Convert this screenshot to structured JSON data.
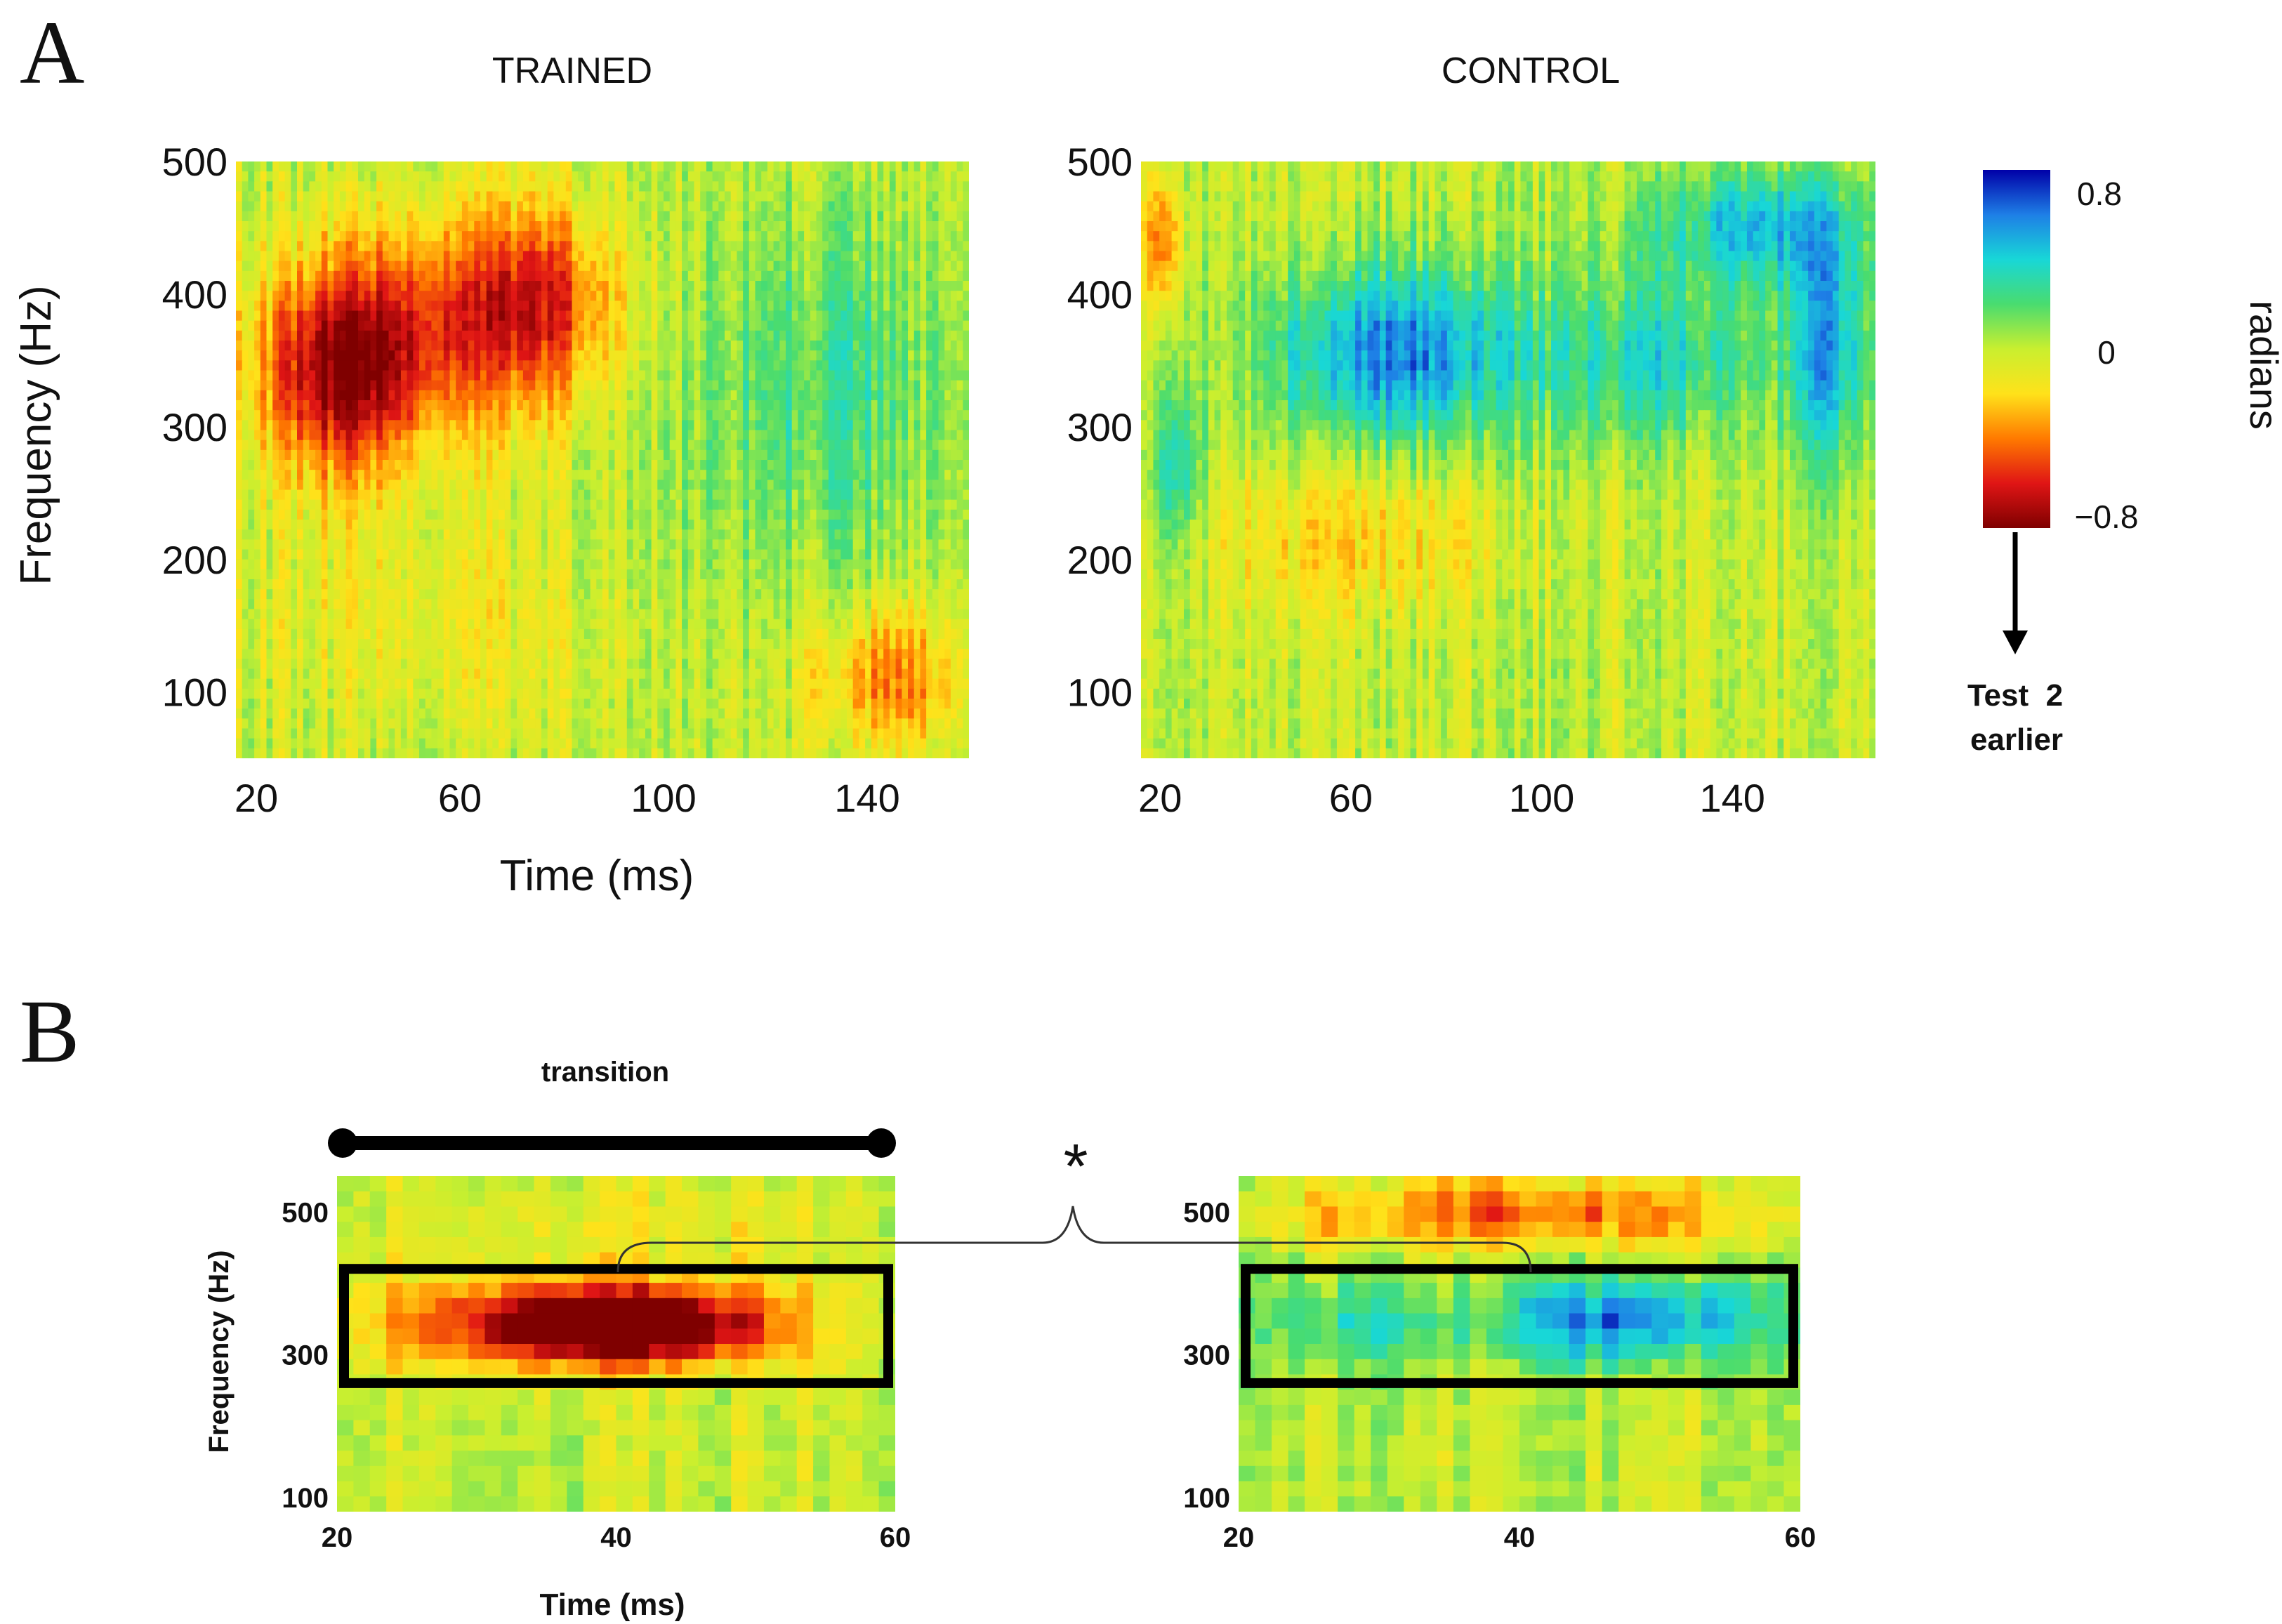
{
  "figure": {
    "panel_a_letter": "A",
    "panel_b_letter": "B",
    "significance_marker": "*"
  },
  "colorbar": {
    "max_label": "0.8",
    "mid_label": "0",
    "min_label": "−0.8",
    "unit_label": "radians",
    "arrow_label_line1": "Test  2",
    "arrow_label_line2": "earlier",
    "colors": [
      "#7f0000",
      "#e01515",
      "#ff7a00",
      "#ffe21a",
      "#c9ef2f",
      "#49dc6f",
      "#18d7d7",
      "#1e7fe6",
      "#0000a8"
    ]
  },
  "chart_data": [
    {
      "type": "heatmap",
      "title": "TRAINED",
      "xlabel": "Time (ms)",
      "ylabel": "Frequency (Hz)",
      "xlim": [
        16,
        160
      ],
      "ylim": [
        50,
        500
      ],
      "x_ticks": [
        20,
        60,
        100,
        140
      ],
      "y_ticks": [
        100,
        200,
        300,
        400,
        500
      ],
      "x_tick_labels": [
        "20",
        "60",
        "100",
        "140"
      ],
      "y_tick_labels": [
        "100",
        "200",
        "300",
        "400",
        "500"
      ],
      "value_unit": "radians",
      "value_range": [
        -0.8,
        0.8
      ],
      "features": [
        {
          "t": [
            18,
            55
          ],
          "f": [
            250,
            430
          ],
          "value": -0.7
        },
        {
          "t": [
            30,
            90
          ],
          "f": [
            280,
            480
          ],
          "value": -0.45
        },
        {
          "t": [
            60,
            92
          ],
          "f": [
            320,
            470
          ],
          "value": -0.35
        },
        {
          "t": [
            90,
            160
          ],
          "f": [
            160,
            480
          ],
          "value": 0.15
        },
        {
          "t": [
            115,
            160
          ],
          "f": [
            200,
            480
          ],
          "value": 0.1
        },
        {
          "t": [
            128,
            160
          ],
          "f": [
            50,
            170
          ],
          "value": -0.4
        },
        {
          "t": [
            16,
            90
          ],
          "f": [
            50,
            250
          ],
          "value": -0.15
        }
      ]
    },
    {
      "type": "heatmap",
      "title": "CONTROL",
      "xlabel": "",
      "ylabel": "",
      "xlim": [
        16,
        170
      ],
      "ylim": [
        50,
        500
      ],
      "x_ticks": [
        20,
        60,
        100,
        140
      ],
      "y_ticks": [
        100,
        200,
        300,
        400,
        500
      ],
      "x_tick_labels": [
        "20",
        "60",
        "100",
        "140"
      ],
      "y_tick_labels": [
        "100",
        "200",
        "300",
        "400",
        "500"
      ],
      "value_unit": "radians",
      "value_range": [
        -0.8,
        0.8
      ],
      "features": [
        {
          "t": [
            16,
            25
          ],
          "f": [
            380,
            500
          ],
          "value": -0.45
        },
        {
          "t": [
            40,
            100
          ],
          "f": [
            280,
            430
          ],
          "value": 0.6
        },
        {
          "t": [
            100,
            150
          ],
          "f": [
            280,
            420
          ],
          "value": 0.35
        },
        {
          "t": [
            150,
            170
          ],
          "f": [
            260,
            460
          ],
          "value": 0.5
        },
        {
          "t": [
            120,
            170
          ],
          "f": [
            400,
            500
          ],
          "value": 0.45
        },
        {
          "t": [
            20,
            100
          ],
          "f": [
            150,
            280
          ],
          "value": -0.2
        },
        {
          "t": [
            16,
            30
          ],
          "f": [
            200,
            330
          ],
          "value": 0.3
        }
      ]
    },
    {
      "type": "heatmap",
      "title": "",
      "panel_label": "transition",
      "xlabel": "Time (ms)",
      "ylabel": "Frequency (Hz)",
      "xlim": [
        20,
        60
      ],
      "ylim": [
        80,
        550
      ],
      "x_ticks": [
        20,
        40,
        60
      ],
      "y_ticks": [
        100,
        300,
        500
      ],
      "x_tick_labels": [
        "20",
        "40",
        "60"
      ],
      "y_tick_labels": [
        "100",
        "300",
        "500"
      ],
      "value_unit": "radians",
      "value_range": [
        -0.8,
        0.8
      ],
      "roi": {
        "t": [
          20,
          60
        ],
        "f": [
          260,
          420
        ]
      },
      "features": [
        {
          "t": [
            20,
            55
          ],
          "f": [
            270,
            420
          ],
          "value": -0.6
        },
        {
          "t": [
            30,
            50
          ],
          "f": [
            290,
            390
          ],
          "value": -0.75
        },
        {
          "t": [
            20,
            60
          ],
          "f": [
            430,
            550
          ],
          "value": -0.1
        }
      ]
    },
    {
      "type": "heatmap",
      "title": "",
      "xlabel": "",
      "ylabel": "",
      "xlim": [
        20,
        60
      ],
      "ylim": [
        80,
        550
      ],
      "x_ticks": [
        20,
        40,
        60
      ],
      "y_ticks": [
        100,
        300,
        500
      ],
      "x_tick_labels": [
        "20",
        "40",
        "60"
      ],
      "y_tick_labels": [
        "100",
        "300",
        "500"
      ],
      "value_unit": "radians",
      "value_range": [
        -0.8,
        0.8
      ],
      "roi": {
        "t": [
          20,
          60
        ],
        "f": [
          260,
          420
        ]
      },
      "features": [
        {
          "t": [
            35,
            60
          ],
          "f": [
            280,
            420
          ],
          "value": 0.6
        },
        {
          "t": [
            20,
            35
          ],
          "f": [
            270,
            420
          ],
          "value": 0.25
        },
        {
          "t": [
            20,
            60
          ],
          "f": [
            440,
            550
          ],
          "value": -0.45
        }
      ]
    }
  ]
}
